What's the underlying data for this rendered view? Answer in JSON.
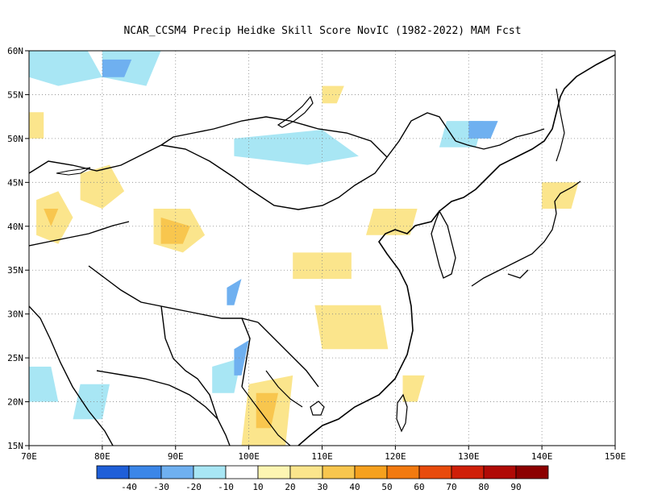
{
  "chart_data": {
    "type": "heatmap",
    "title": "NCAR_CCSM4 Precip Heidke Skill Score NovIC (1982-2022) MAM Fcst",
    "x_ticks": [
      "70E",
      "80E",
      "90E",
      "100E",
      "110E",
      "120E",
      "130E",
      "140E",
      "150E"
    ],
    "y_ticks": [
      "15N",
      "20N",
      "25N",
      "30N",
      "35N",
      "40N",
      "45N",
      "50N",
      "55N",
      "60N"
    ],
    "xlim": [
      70,
      150
    ],
    "ylim": [
      15,
      60
    ],
    "grid": true,
    "colorbar": {
      "labels": [
        "-40",
        "-30",
        "-20",
        "-10",
        "10",
        "20",
        "30",
        "40",
        "50",
        "60",
        "70",
        "80",
        "90"
      ],
      "colors": [
        "#1f5fd8",
        "#3b86e8",
        "#6fb0f0",
        "#a8e6f4",
        "#ffffff",
        "#fdf5b2",
        "#fbe58c",
        "#f8c64e",
        "#f6a11e",
        "#f27a10",
        "#e84b0c",
        "#cf1f08",
        "#b00a06",
        "#8c0000"
      ]
    },
    "regions": [
      {
        "lon": [
          71,
          74,
          76,
          74,
          71
        ],
        "lat": [
          43,
          44,
          41,
          38,
          39
        ],
        "value": 25
      },
      {
        "lon": [
          72,
          74,
          73
        ],
        "lat": [
          42,
          42,
          40
        ],
        "value": 35
      },
      {
        "lon": [
          77,
          81,
          83,
          80,
          77
        ],
        "lat": [
          46,
          47,
          44,
          42,
          43
        ],
        "value": 25
      },
      {
        "lon": [
          87,
          92,
          94,
          91,
          87
        ],
        "lat": [
          42,
          42,
          39,
          37,
          38
        ],
        "value": 25
      },
      {
        "lon": [
          88,
          92,
          91,
          88
        ],
        "lat": [
          41,
          40,
          38,
          38
        ],
        "value": 35
      },
      {
        "lon": [
          70,
          78,
          80,
          74,
          70
        ],
        "lat": [
          60,
          60,
          57,
          56,
          57
        ],
        "value": -15
      },
      {
        "lon": [
          80,
          88,
          86,
          80
        ],
        "lat": [
          60,
          60,
          56,
          57
        ],
        "value": -15
      },
      {
        "lon": [
          80,
          84,
          83,
          80
        ],
        "lat": [
          59,
          59,
          57,
          57
        ],
        "value": -25
      },
      {
        "lon": [
          98,
          110,
          115,
          108,
          98
        ],
        "lat": [
          50,
          51,
          48,
          47,
          48
        ],
        "value": -15
      },
      {
        "lon": [
          70,
          73,
          74,
          70
        ],
        "lat": [
          24,
          24,
          20,
          20
        ],
        "value": -15
      },
      {
        "lon": [
          77,
          81,
          80,
          76
        ],
        "lat": [
          22,
          22,
          18,
          18
        ],
        "value": -15
      },
      {
        "lon": [
          95,
          99,
          98,
          95
        ],
        "lat": [
          24,
          25,
          21,
          21
        ],
        "value": -15
      },
      {
        "lon": [
          97,
          99,
          98,
          97
        ],
        "lat": [
          33,
          34,
          31,
          31
        ],
        "value": -25
      },
      {
        "lon": [
          98,
          100,
          99,
          98
        ],
        "lat": [
          26,
          27,
          23,
          23
        ],
        "value": -25
      },
      {
        "lon": [
          100,
          106,
          105,
          99
        ],
        "lat": [
          22,
          23,
          15,
          15
        ],
        "value": 20
      },
      {
        "lon": [
          101,
          104,
          103,
          101
        ],
        "lat": [
          21,
          21,
          17,
          17
        ],
        "value": 30
      },
      {
        "lon": [
          109,
          118,
          119,
          110
        ],
        "lat": [
          31,
          31,
          26,
          26
        ],
        "value": 20
      },
      {
        "lon": [
          106,
          114,
          114,
          106
        ],
        "lat": [
          37,
          37,
          34,
          34
        ],
        "value": 20
      },
      {
        "lon": [
          117,
          123,
          122,
          116
        ],
        "lat": [
          42,
          42,
          39,
          39
        ],
        "value": 20
      },
      {
        "lon": [
          127,
          132,
          131,
          126
        ],
        "lat": [
          52,
          52,
          49,
          49
        ],
        "value": -15
      },
      {
        "lon": [
          130,
          134,
          133,
          130
        ],
        "lat": [
          52,
          52,
          50,
          50
        ],
        "value": -30
      },
      {
        "lon": [
          140,
          145,
          144,
          140
        ],
        "lat": [
          45,
          45,
          42,
          42
        ],
        "value": 20
      },
      {
        "lon": [
          121,
          124,
          123,
          121
        ],
        "lat": [
          23,
          23,
          20,
          20
        ],
        "value": 20
      },
      {
        "lon": [
          110,
          113,
          112,
          110
        ],
        "lat": [
          56,
          56,
          54,
          54
        ],
        "value": 20
      },
      {
        "lon": [
          70,
          72,
          72,
          70
        ],
        "lat": [
          53,
          53,
          50,
          50
        ],
        "value": 20
      }
    ]
  }
}
